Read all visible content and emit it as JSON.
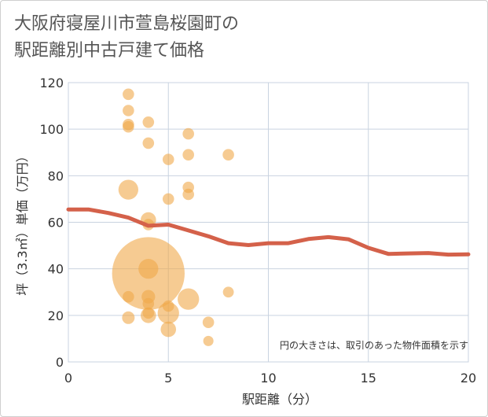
{
  "chart_data": {
    "type": "scatter",
    "title_line1": "大阪府寝屋川市萱島桜園町の",
    "title_line2": "駅距離別中古戸建て価格",
    "xlabel": "駅距離（分）",
    "ylabel": "坪（3.3㎡）単価（万円）",
    "xlim": [
      0,
      20
    ],
    "ylim": [
      0,
      120
    ],
    "xticks": [
      0,
      5,
      10,
      15,
      20
    ],
    "yticks": [
      0,
      20,
      40,
      60,
      80,
      100,
      120
    ],
    "note": "円の大きさは、取引のあった物件面積を示す",
    "colors": {
      "bubble": "#f0a94a",
      "line": "#d4614a",
      "grid": "#c9d3e0"
    },
    "points": [
      {
        "x": 3,
        "y": 115,
        "size": 1
      },
      {
        "x": 3,
        "y": 108,
        "size": 1
      },
      {
        "x": 3,
        "y": 102,
        "size": 1
      },
      {
        "x": 3,
        "y": 101,
        "size": 1
      },
      {
        "x": 3,
        "y": 74,
        "size": 3
      },
      {
        "x": 3,
        "y": 28,
        "size": 1
      },
      {
        "x": 3,
        "y": 19,
        "size": 1.2
      },
      {
        "x": 4,
        "y": 103,
        "size": 1
      },
      {
        "x": 4,
        "y": 94,
        "size": 1
      },
      {
        "x": 4,
        "y": 61,
        "size": 1.8
      },
      {
        "x": 4,
        "y": 59,
        "size": 1
      },
      {
        "x": 4,
        "y": 40,
        "size": 3
      },
      {
        "x": 4,
        "y": 38,
        "size": 40
      },
      {
        "x": 4,
        "y": 28,
        "size": 1.4
      },
      {
        "x": 4,
        "y": 25,
        "size": 1
      },
      {
        "x": 4,
        "y": 21,
        "size": 1
      },
      {
        "x": 4,
        "y": 20,
        "size": 1.8
      },
      {
        "x": 5,
        "y": 87,
        "size": 1
      },
      {
        "x": 5,
        "y": 70,
        "size": 1
      },
      {
        "x": 5,
        "y": 24,
        "size": 1
      },
      {
        "x": 5,
        "y": 21,
        "size": 3.5
      },
      {
        "x": 5,
        "y": 14,
        "size": 1.8
      },
      {
        "x": 6,
        "y": 98,
        "size": 1
      },
      {
        "x": 6,
        "y": 89,
        "size": 1
      },
      {
        "x": 6,
        "y": 75,
        "size": 1
      },
      {
        "x": 6,
        "y": 72,
        "size": 1
      },
      {
        "x": 6,
        "y": 27,
        "size": 3.5
      },
      {
        "x": 7,
        "y": 17,
        "size": 1
      },
      {
        "x": 7,
        "y": 9,
        "size": 0.8
      },
      {
        "x": 8,
        "y": 89,
        "size": 1
      },
      {
        "x": 8,
        "y": 30,
        "size": 0.9
      }
    ],
    "trend": [
      {
        "x": 0,
        "y": 65.5
      },
      {
        "x": 1,
        "y": 65.5
      },
      {
        "x": 2,
        "y": 64
      },
      {
        "x": 3,
        "y": 62
      },
      {
        "x": 4,
        "y": 58.5
      },
      {
        "x": 5,
        "y": 59
      },
      {
        "x": 6,
        "y": 56.5
      },
      {
        "x": 7,
        "y": 54
      },
      {
        "x": 8,
        "y": 51
      },
      {
        "x": 9,
        "y": 50.2
      },
      {
        "x": 10,
        "y": 51
      },
      {
        "x": 11,
        "y": 51
      },
      {
        "x": 12,
        "y": 52.8
      },
      {
        "x": 13,
        "y": 53.6
      },
      {
        "x": 14,
        "y": 52.7
      },
      {
        "x": 15,
        "y": 49
      },
      {
        "x": 16,
        "y": 46.4
      },
      {
        "x": 17,
        "y": 46.6
      },
      {
        "x": 18,
        "y": 46.8
      },
      {
        "x": 19,
        "y": 46.1
      },
      {
        "x": 20,
        "y": 46.2
      }
    ]
  }
}
